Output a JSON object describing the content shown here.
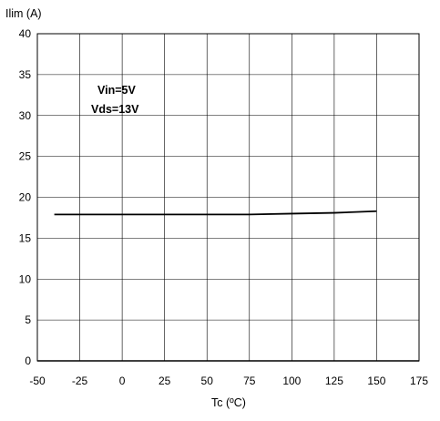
{
  "chart_data": {
    "type": "line",
    "title": "",
    "xlabel": "Tc (ºC)",
    "ylabel": "Ilim (A)",
    "xlim": [
      -50,
      175
    ],
    "ylim": [
      0,
      40
    ],
    "x_ticks": [
      -50,
      -25,
      0,
      25,
      50,
      75,
      100,
      125,
      150,
      175
    ],
    "y_ticks": [
      0,
      5,
      10,
      15,
      20,
      25,
      30,
      35,
      40
    ],
    "grid": true,
    "legend": "none",
    "annotations": [
      "Vin=5V",
      "Vds=13V"
    ],
    "series": [
      {
        "x": [
          -40,
          0,
          25,
          75,
          100,
          125,
          150
        ],
        "y": [
          17.9,
          17.9,
          17.9,
          17.9,
          18.0,
          18.1,
          18.3
        ],
        "color": "#000000"
      }
    ]
  }
}
